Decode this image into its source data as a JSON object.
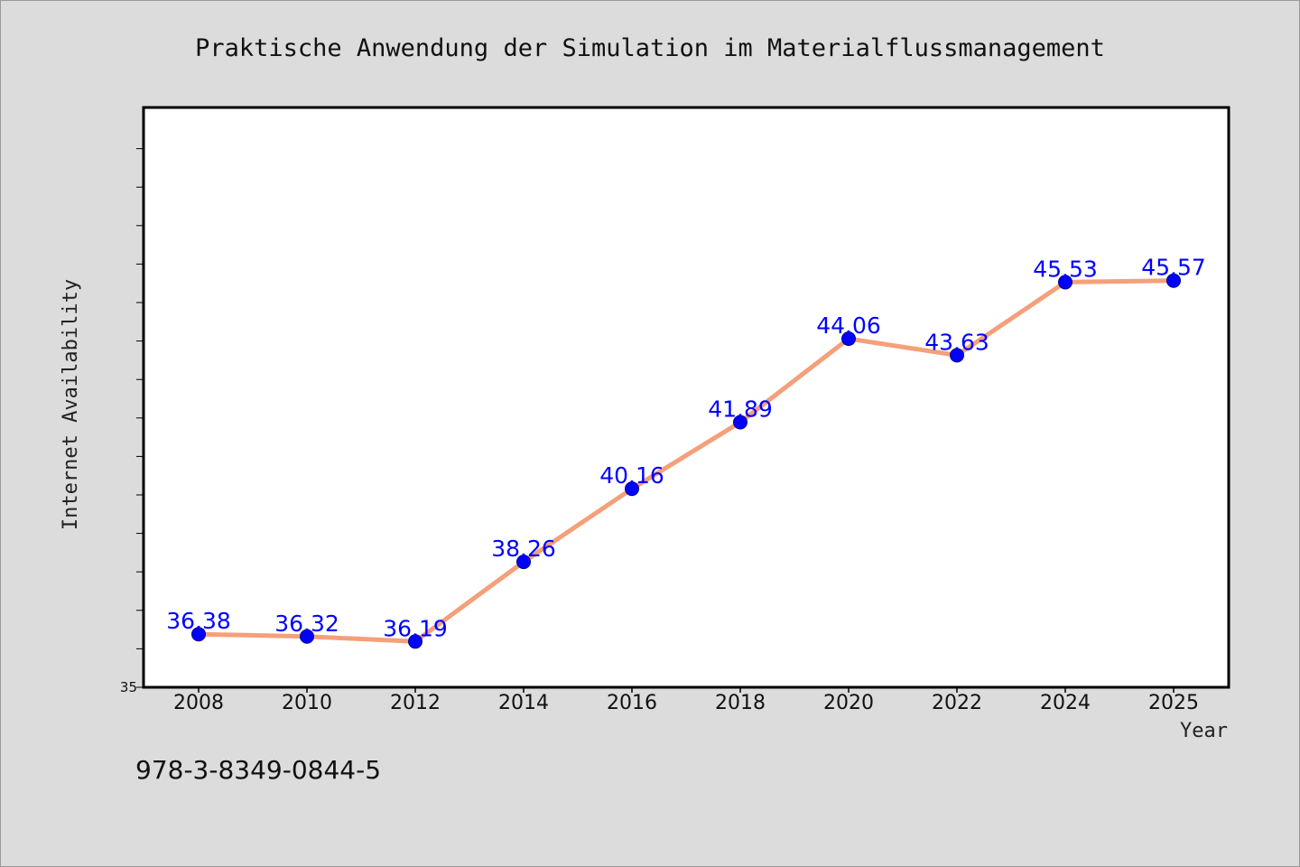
{
  "chart_data": {
    "type": "line",
    "title": "Praktische Anwendung der Simulation im Materialflussmanagement",
    "xlabel": "Year",
    "ylabel": "Internet Availability",
    "categories": [
      "2008",
      "2010",
      "2012",
      "2014",
      "2016",
      "2018",
      "2020",
      "2022",
      "2024",
      "2025"
    ],
    "series": [
      {
        "values": [
          36.38,
          36.32,
          36.19,
          38.26,
          40.16,
          41.89,
          44.06,
          43.63,
          45.53,
          45.57
        ],
        "labels": [
          "36.38",
          "36.32",
          "36.19",
          "38.26",
          "40.16",
          "41.89",
          "44.06",
          "43.63",
          "45.53",
          "45.57"
        ]
      }
    ],
    "ylim": [
      35,
      50
    ],
    "y_tick_labels": [
      "35"
    ],
    "grid": false,
    "line_color": "#f4a07a",
    "marker_color": "#0000ff",
    "label_color": "#0000ff"
  },
  "footer": {
    "isbn": "978-3-8349-0844-5"
  }
}
